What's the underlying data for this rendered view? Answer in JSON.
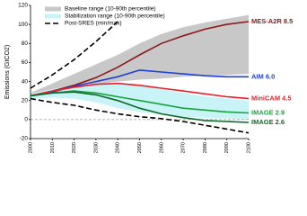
{
  "chart_data": {
    "type": "line",
    "y_label": "Emissions (GtCO2)",
    "x": [
      2000,
      2010,
      2020,
      2030,
      2040,
      2050,
      2060,
      2070,
      2080,
      2090,
      2100
    ],
    "xlim": [
      2000,
      2100
    ],
    "xticks": [
      2000,
      2010,
      2020,
      2030,
      2040,
      2050,
      2060,
      2070,
      2080,
      2090,
      2100
    ],
    "ylim": [
      -20,
      120
    ],
    "yticks": [
      -20,
      0,
      20,
      40,
      60,
      80,
      100,
      120
    ],
    "zero_line": true,
    "bands": [
      {
        "name": "Baseline range (10-90th percentile)",
        "color": "#c8c8c8",
        "lower": [
          25,
          30,
          34,
          37,
          40,
          42,
          43,
          45,
          46,
          47,
          48
        ],
        "upper": [
          28,
          38,
          48,
          58,
          68,
          80,
          90,
          97,
          102,
          106,
          110
        ]
      },
      {
        "name": "Stabilization range (10-90th percentile)",
        "color": "#c9f4f7",
        "lower": [
          22,
          23,
          22,
          18,
          12,
          8,
          5,
          3,
          2,
          1,
          0
        ],
        "upper": [
          27,
          32,
          36,
          38,
          38,
          36,
          32,
          28,
          24,
          22,
          20
        ]
      }
    ],
    "envelope": {
      "name": "Post-SRES (min/max)",
      "color": "#000000",
      "upper": [
        33,
        47,
        63,
        82,
        103,
        null,
        null,
        null,
        null,
        null,
        null
      ],
      "lower": [
        22,
        18,
        15,
        10,
        6,
        3,
        1,
        -2,
        -6,
        -10,
        -14
      ]
    },
    "series": [
      {
        "name": "MES-A2R 8.5",
        "color": "#8b1a1a",
        "values": [
          25,
          30,
          36,
          44,
          55,
          68,
          80,
          88,
          95,
          100,
          103
        ]
      },
      {
        "name": "AIM 6.0",
        "color": "#1f3fd6",
        "values": [
          25,
          29,
          35,
          40,
          45,
          52,
          50,
          48,
          46,
          45,
          45
        ]
      },
      {
        "name": "MiniCAM 4.5",
        "color": "#e8202a",
        "values": [
          25,
          30,
          34,
          37,
          38,
          36,
          33,
          30,
          27,
          24,
          22
        ]
      },
      {
        "name": "IMAGE 2.9",
        "color": "#19a43a",
        "values": [
          25,
          28,
          30,
          28,
          24,
          20,
          16,
          12,
          10,
          8,
          7
        ]
      },
      {
        "name": "IMAGE 2.6",
        "color": "#0e6b2a",
        "values": [
          25,
          28,
          29,
          26,
          20,
          12,
          6,
          2,
          -1,
          -2,
          -3
        ]
      }
    ]
  }
}
